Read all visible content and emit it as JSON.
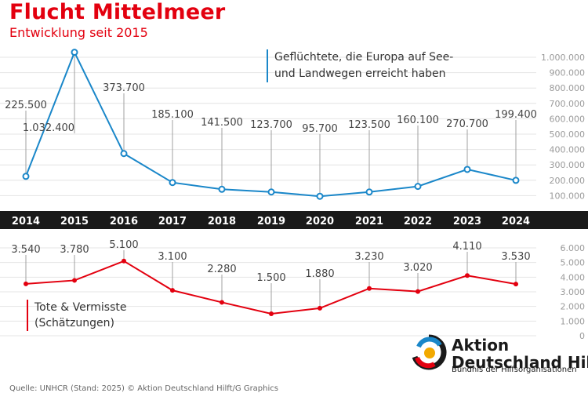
{
  "title": "Flucht Mittelmeer",
  "subtitle": "Entwicklung seit 2015",
  "colors": {
    "accent": "#e3000f",
    "blue": "#1a87c9",
    "band": "#1a1a1a"
  },
  "chart_data": [
    {
      "type": "line",
      "name": "arrivals",
      "legend": "Geflüchtete, die Europa auf See- und Landwegen erreicht haben",
      "x": [
        "2014",
        "2015",
        "2016",
        "2017",
        "2018",
        "2019",
        "2020",
        "2021",
        "2022",
        "2023",
        "2024"
      ],
      "values": [
        225500,
        1032400,
        373700,
        185100,
        141500,
        123700,
        95700,
        123500,
        160100,
        270700,
        199400
      ],
      "labels": [
        "225.500",
        "1.032.400",
        "373.700",
        "185.100",
        "141.500",
        "123.700",
        "95.700",
        "123.500",
        "160.100",
        "270.700",
        "199.400"
      ],
      "ylim": [
        0,
        1000000
      ],
      "yticks": [
        "100.000",
        "200.000",
        "300.000",
        "400.000",
        "500.000",
        "600.000",
        "700.000",
        "800.000",
        "900.000",
        "1.000.000"
      ],
      "ytick_values": [
        100000,
        200000,
        300000,
        400000,
        500000,
        600000,
        700000,
        800000,
        900000,
        1000000
      ]
    },
    {
      "type": "line",
      "name": "deaths",
      "legend": "Tote & Vermisste (Schätzungen)",
      "x": [
        "2014",
        "2015",
        "2016",
        "2017",
        "2018",
        "2019",
        "2020",
        "2021",
        "2022",
        "2023",
        "2024"
      ],
      "values": [
        3540,
        3780,
        5100,
        3100,
        2280,
        1500,
        1880,
        3230,
        3020,
        4110,
        3530
      ],
      "labels": [
        "3.540",
        "3.780",
        "5.100",
        "3.100",
        "2.280",
        "1.500",
        "1.880",
        "3.230",
        "3.020",
        "4.110",
        "3.530"
      ],
      "ylim": [
        0,
        6000
      ],
      "yticks": [
        "0",
        "1.000",
        "2.000",
        "3.000",
        "4.000",
        "5.000",
        "6.000"
      ],
      "ytick_values": [
        0,
        1000,
        2000,
        3000,
        4000,
        5000,
        6000
      ]
    }
  ],
  "logo": {
    "line1": "Aktion",
    "line2": "Deutschland Hilft",
    "tagline": "Bündnis der Hilfsorganisationen"
  },
  "source": "Quelle: UNHCR (Stand: 2025) © Aktion Deutschland Hilft/G Graphics"
}
